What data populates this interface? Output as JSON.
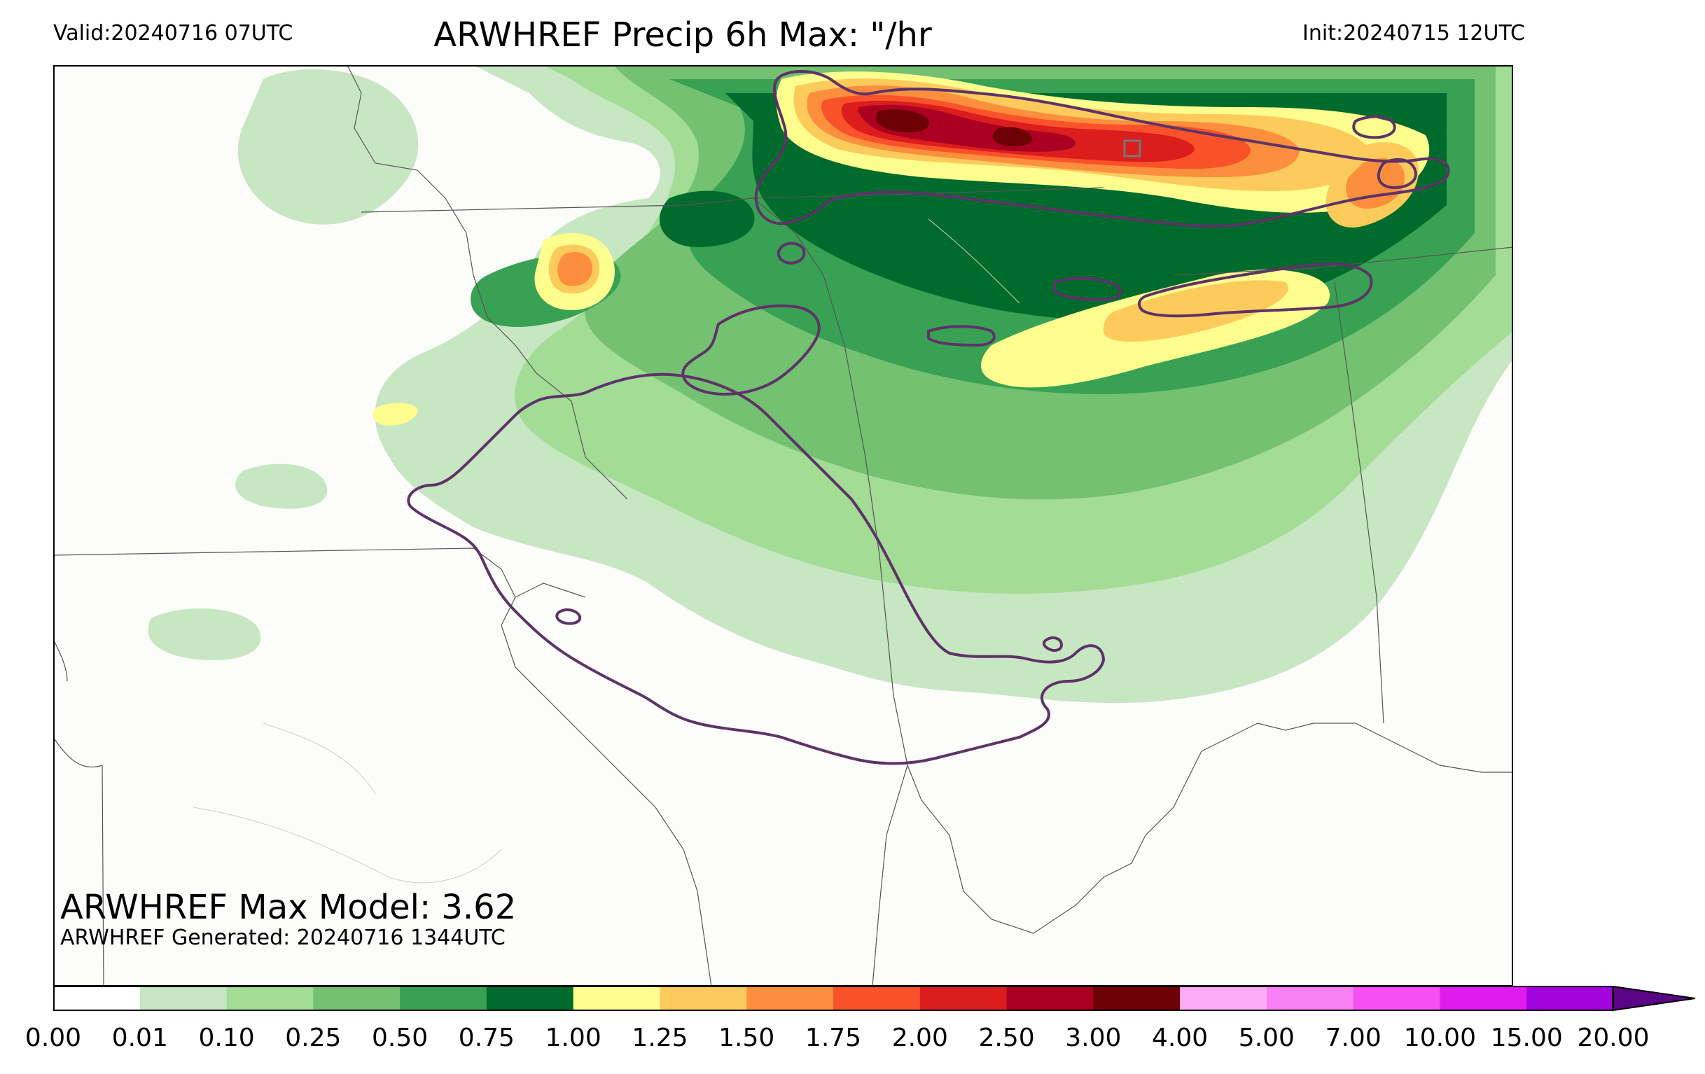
{
  "header": {
    "valid": "Valid:20240716 07UTC",
    "title": "ARWHREF Precip 6h Max: \"/hr",
    "init": "Init:20240715 12UTC"
  },
  "stats": {
    "max_model": "ARWHREF Max Model: 3.62",
    "generated": "ARWHREF Generated: 20240716 1344UTC"
  },
  "colorbar": {
    "ticks": [
      "0.00",
      "0.01",
      "0.10",
      "0.25",
      "0.50",
      "0.75",
      "1.00",
      "1.25",
      "1.50",
      "1.75",
      "2.00",
      "2.50",
      "3.00",
      "4.00",
      "5.00",
      "7.00",
      "10.00",
      "15.00",
      "20.00"
    ],
    "colors": [
      "#ffffff",
      "#c7e6c2",
      "#a2dc95",
      "#74c171",
      "#39a153",
      "#006b2c",
      "#fefe8f",
      "#fdcb5c",
      "#fc8f3d",
      "#f9522a",
      "#dc1d1e",
      "#ab0021",
      "#6c0004",
      "#fbabf8",
      "#f880f4",
      "#f64ff3",
      "#e11bee",
      "#a104dc",
      "#5a0486"
    ]
  },
  "map": {
    "land_color": "#fcfcfa",
    "contour_color": "#5e3368"
  }
}
